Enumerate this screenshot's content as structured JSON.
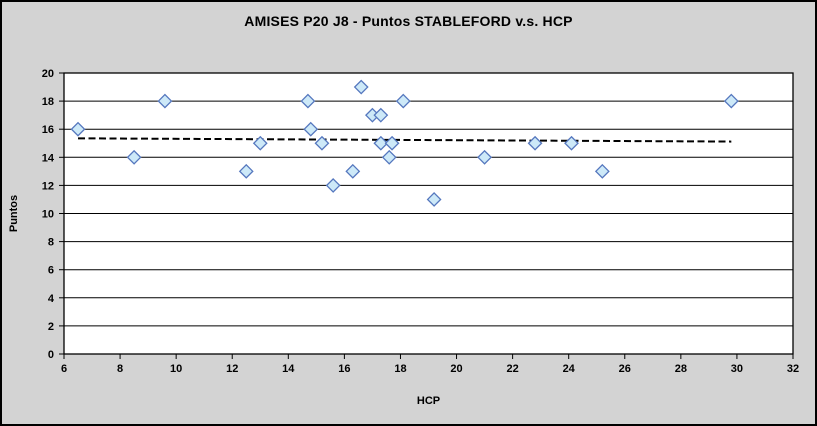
{
  "window": {
    "background": "#D3D3D3",
    "border_color": "#000000"
  },
  "chart_data": {
    "type": "scatter",
    "title": "AMISES P20 J8 - Puntos STABLEFORD v.s. HCP",
    "xlabel": "HCP",
    "ylabel": "Puntos",
    "xlim": [
      6,
      32
    ],
    "ylim": [
      0,
      20
    ],
    "x_ticks": [
      6,
      8,
      10,
      12,
      14,
      16,
      18,
      20,
      22,
      24,
      26,
      28,
      30,
      32
    ],
    "y_ticks": [
      0,
      2,
      4,
      6,
      8,
      10,
      12,
      14,
      16,
      18,
      20
    ],
    "grid": "horizontal-only",
    "legend_position": "none",
    "series": [
      {
        "name": "Puntos STABLEFORD",
        "marker": "diamond",
        "points": [
          [
            6.5,
            16
          ],
          [
            8.5,
            14
          ],
          [
            9.6,
            18
          ],
          [
            12.5,
            13
          ],
          [
            13.0,
            15
          ],
          [
            14.7,
            18
          ],
          [
            14.8,
            16
          ],
          [
            15.2,
            15
          ],
          [
            15.6,
            12
          ],
          [
            16.3,
            13
          ],
          [
            16.6,
            19
          ],
          [
            17.0,
            17
          ],
          [
            17.3,
            17
          ],
          [
            17.3,
            15
          ],
          [
            17.6,
            14
          ],
          [
            17.7,
            15
          ],
          [
            18.1,
            18
          ],
          [
            19.2,
            11
          ],
          [
            21.0,
            14
          ],
          [
            22.8,
            15
          ],
          [
            24.1,
            15
          ],
          [
            25.2,
            13
          ],
          [
            29.8,
            18
          ]
        ]
      }
    ],
    "trendline": {
      "style": "dashed",
      "color": "#000000",
      "x1": 6.5,
      "y1": 15.35,
      "x2": 29.8,
      "y2": 15.12
    },
    "colors": {
      "marker_fill": "#CDE9F8",
      "marker_stroke": "#5577BE",
      "plot_background": "#FFFFFF",
      "gridline": "#000000",
      "axis": "#000000",
      "text": "#000000"
    }
  }
}
